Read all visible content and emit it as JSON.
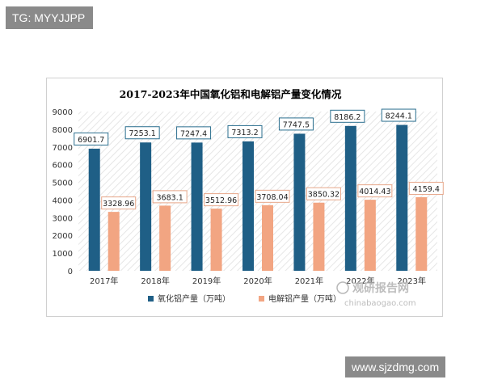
{
  "overlays": {
    "top_left_tag": "TG: MYYJJPP",
    "bottom_right_tag": "www.sjzdmg.com"
  },
  "watermark": {
    "name": "观研报告网",
    "url": "chinabaogao.com"
  },
  "colors": {
    "alumina": "#1f5f86",
    "electrolytic_aluminum": "#f2a582",
    "title": "#1f4e79"
  },
  "chart_data": {
    "type": "bar",
    "title": "2017-2023年中国氧化铝和电解铝产量变化情况",
    "xlabel": "",
    "ylabel": "",
    "categories": [
      "2017年",
      "2018年",
      "2019年",
      "2020年",
      "2021年",
      "2022年",
      "2023年"
    ],
    "ylim": [
      0,
      9000
    ],
    "yticks": [
      0,
      1000,
      2000,
      3000,
      4000,
      5000,
      6000,
      7000,
      8000,
      9000
    ],
    "legend_position": "bottom",
    "grid": false,
    "series": [
      {
        "name": "氧化铝产量（万吨）",
        "color": "#1f5f86",
        "values": [
          6901.7,
          7253.1,
          7247.4,
          7313.2,
          7747.5,
          8186.2,
          8244.1
        ],
        "labels": [
          "6901.7",
          "7253.1",
          "7247.4",
          "7313.2",
          "7747.5",
          "8186.2",
          "8244.1"
        ]
      },
      {
        "name": "电解铝产量（万吨）",
        "color": "#f2a582",
        "values": [
          3328.96,
          3683.1,
          3512.96,
          3708.04,
          3850.32,
          4014.43,
          4159.4
        ],
        "labels": [
          "3328.96",
          "3683.1",
          "3512.96",
          "3708.04",
          "3850.32",
          "4014.43",
          "4159.4"
        ]
      }
    ]
  }
}
